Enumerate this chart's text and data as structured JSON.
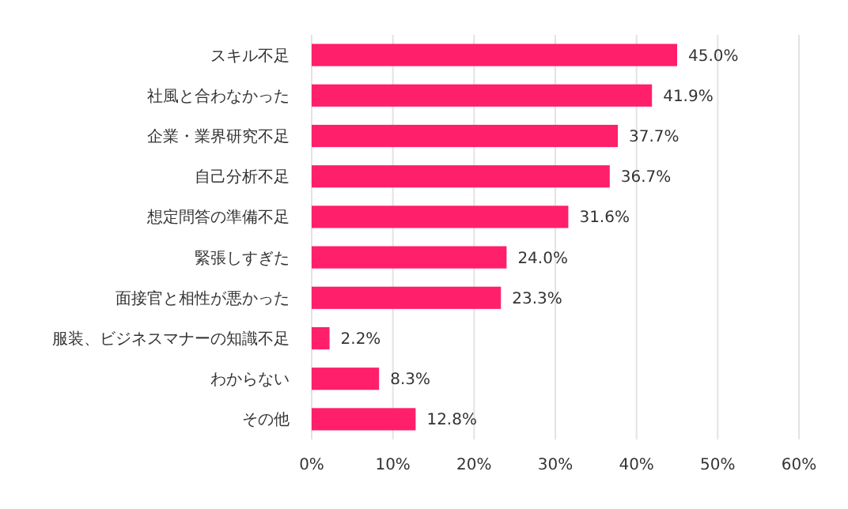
{
  "chart_data": {
    "type": "bar",
    "orientation": "horizontal",
    "categories": [
      "スキル不足",
      "社風と合わなかった",
      "企業・業界研究不足",
      "自己分析不足",
      "想定問答の準備不足",
      "緊張しすぎた",
      "面接官と相性が悪かった",
      "服装、ビジネスマナーの知識不足",
      "わからない",
      "その他"
    ],
    "values": [
      45.0,
      41.9,
      37.7,
      36.7,
      31.6,
      24.0,
      23.3,
      2.2,
      8.3,
      12.8
    ],
    "value_labels": [
      "45.0%",
      "41.9%",
      "37.7%",
      "36.7%",
      "31.6%",
      "24.0%",
      "23.3%",
      "2.2%",
      "8.3%",
      "12.8%"
    ],
    "color": "#ff1f6b",
    "xlim": [
      0,
      60
    ],
    "xticks": [
      {
        "value": 0,
        "label": "0%"
      },
      {
        "value": 10,
        "label": "10%"
      },
      {
        "value": 20,
        "label": "20%"
      },
      {
        "value": 30,
        "label": "30%"
      },
      {
        "value": 40,
        "label": "40%"
      },
      {
        "value": 50,
        "label": "50%"
      },
      {
        "value": 60,
        "label": "60%"
      }
    ],
    "grid": "x"
  }
}
